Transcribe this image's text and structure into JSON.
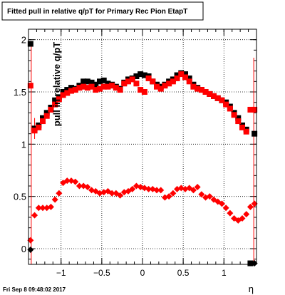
{
  "chart_data": {
    "type": "scatter",
    "title": "Fitted pull in relative q/pT for Primary Rec Pion EtapT",
    "xlabel": "η",
    "ylabel": "pull in relative q/pT",
    "xlim": [
      -1.4,
      1.4
    ],
    "ylim": [
      -0.15,
      2.1
    ],
    "x_ticks": [
      "−1",
      "−0.5",
      "0",
      "0.5",
      "1"
    ],
    "x_tick_values": [
      -1,
      -0.5,
      0,
      0.5,
      1
    ],
    "y_ticks": [
      "0",
      "0.5",
      "1",
      "1.5",
      "2"
    ],
    "y_tick_values": [
      0,
      0.5,
      1,
      1.5,
      2
    ],
    "grid": true,
    "series": [
      {
        "marker": "square",
        "color": "#000000",
        "x": [
          -1.375,
          -1.325,
          -1.275,
          -1.225,
          -1.175,
          -1.125,
          -1.075,
          -1.025,
          -0.975,
          -0.925,
          -0.875,
          -0.825,
          -0.775,
          -0.725,
          -0.675,
          -0.625,
          -0.575,
          -0.525,
          -0.475,
          -0.425,
          -0.375,
          -0.325,
          -0.275,
          -0.225,
          -0.175,
          -0.125,
          -0.075,
          -0.025,
          0.025,
          0.075,
          0.125,
          0.175,
          0.225,
          0.275,
          0.325,
          0.375,
          0.425,
          0.475,
          0.525,
          0.575,
          0.625,
          0.675,
          0.725,
          0.775,
          0.825,
          0.875,
          0.925,
          0.975,
          1.025,
          1.075,
          1.125,
          1.175,
          1.225,
          1.275,
          1.325,
          1.375
        ],
        "y": [
          1.96,
          1.15,
          1.18,
          1.25,
          1.3,
          1.35,
          1.42,
          1.45,
          1.5,
          1.52,
          1.54,
          1.53,
          1.56,
          1.6,
          1.6,
          1.59,
          1.57,
          1.6,
          1.61,
          1.58,
          1.57,
          1.55,
          1.53,
          1.59,
          1.62,
          1.63,
          1.65,
          1.67,
          1.66,
          1.65,
          1.6,
          1.57,
          1.55,
          1.57,
          1.6,
          1.62,
          1.66,
          1.68,
          1.67,
          1.63,
          1.57,
          1.54,
          1.52,
          1.5,
          1.48,
          1.46,
          1.44,
          1.42,
          1.4,
          1.36,
          1.3,
          1.25,
          1.18,
          1.14,
          -0.14,
          1.1
        ]
      },
      {
        "marker": "square",
        "color": "#ff0000",
        "x": [
          -1.375,
          -1.325,
          -1.275,
          -1.225,
          -1.175,
          -1.125,
          -1.075,
          -1.025,
          -0.975,
          -0.925,
          -0.875,
          -0.825,
          -0.775,
          -0.725,
          -0.675,
          -0.625,
          -0.575,
          -0.525,
          -0.475,
          -0.425,
          -0.375,
          -0.325,
          -0.275,
          -0.225,
          -0.175,
          -0.125,
          -0.075,
          -0.025,
          0.025,
          0.075,
          0.125,
          0.175,
          0.225,
          0.275,
          0.325,
          0.375,
          0.425,
          0.475,
          0.525,
          0.575,
          0.625,
          0.675,
          0.725,
          0.775,
          0.825,
          0.875,
          0.925,
          0.975,
          1.025,
          1.075,
          1.125,
          1.175,
          1.225,
          1.275,
          1.325,
          1.375
        ],
        "y": [
          1.56,
          1.13,
          1.16,
          1.22,
          1.27,
          1.33,
          1.38,
          1.43,
          1.47,
          1.49,
          1.51,
          1.52,
          1.54,
          1.55,
          1.54,
          1.55,
          1.52,
          1.53,
          1.55,
          1.55,
          1.56,
          1.54,
          1.52,
          1.58,
          1.6,
          1.62,
          1.58,
          1.52,
          1.5,
          1.63,
          1.6,
          1.55,
          1.53,
          1.56,
          1.58,
          1.6,
          1.63,
          1.67,
          1.64,
          1.6,
          1.55,
          1.53,
          1.52,
          1.5,
          1.48,
          1.46,
          1.44,
          1.42,
          1.38,
          1.34,
          1.28,
          1.22,
          1.16,
          1.12,
          1.33,
          1.33
        ]
      },
      {
        "marker": "diamond",
        "color": "#ff0000",
        "x": [
          -1.375,
          -1.325,
          -1.275,
          -1.225,
          -1.175,
          -1.125,
          -1.075,
          -1.025,
          -0.975,
          -0.925,
          -0.875,
          -0.825,
          -0.775,
          -0.725,
          -0.675,
          -0.625,
          -0.575,
          -0.525,
          -0.475,
          -0.425,
          -0.375,
          -0.325,
          -0.275,
          -0.225,
          -0.175,
          -0.125,
          -0.075,
          -0.025,
          0.025,
          0.075,
          0.125,
          0.175,
          0.225,
          0.275,
          0.325,
          0.375,
          0.425,
          0.475,
          0.525,
          0.575,
          0.625,
          0.675,
          0.725,
          0.775,
          0.825,
          0.875,
          0.925,
          0.975,
          1.025,
          1.075,
          1.125,
          1.175,
          1.225,
          1.275,
          1.325,
          1.375
        ],
        "y": [
          0.08,
          0.32,
          0.39,
          0.39,
          0.39,
          0.4,
          0.47,
          0.53,
          0.63,
          0.65,
          0.65,
          0.64,
          0.6,
          0.6,
          0.59,
          0.56,
          0.55,
          0.53,
          0.54,
          0.55,
          0.53,
          0.53,
          0.51,
          0.54,
          0.55,
          0.57,
          0.6,
          0.59,
          0.58,
          0.57,
          0.57,
          0.56,
          0.56,
          0.49,
          0.5,
          0.53,
          0.57,
          0.58,
          0.57,
          0.58,
          0.56,
          0.59,
          0.52,
          0.49,
          0.5,
          0.47,
          0.45,
          0.43,
          0.39,
          0.34,
          0.29,
          0.27,
          0.29,
          0.33,
          0.4,
          0.43
        ]
      },
      {
        "marker": "diamond",
        "color": "#000000",
        "x": [
          -1.375,
          1.375
        ],
        "y": [
          -0.01,
          -0.14
        ]
      }
    ]
  },
  "footer": {
    "timestamp": "Fri Sep  8 09:48:02 2017"
  }
}
